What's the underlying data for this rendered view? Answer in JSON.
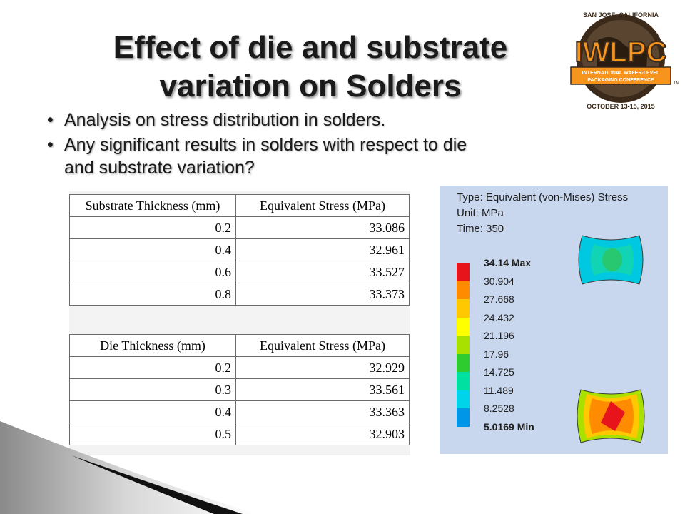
{
  "slide": {
    "title_line1": "Effect of die and substrate",
    "title_line2": "variation on Solders",
    "bullets": [
      "Analysis on stress distribution in solders.",
      "Any significant results in solders with respect to die",
      "and substrate variation?"
    ]
  },
  "logo": {
    "top_text": "SAN JOSE, CALIFORNIA",
    "name": "IWLPC",
    "banner_line1": "INTERNATIONAL WAFER-LEVEL",
    "banner_line2": "PACKAGING CONFERENCE",
    "bottom_text": "OCTOBER 13-15, 2015",
    "tm": "TM",
    "colors": {
      "orange": "#f7941d",
      "dark": "#3b2a1a",
      "banner": "#ffffff"
    }
  },
  "substrate_table": {
    "headers": [
      "Substrate Thickness (mm)",
      "Equivalent Stress (MPa)"
    ],
    "rows": [
      [
        "0.2",
        "33.086"
      ],
      [
        "0.4",
        "32.961"
      ],
      [
        "0.6",
        "33.527"
      ],
      [
        "0.8",
        "33.373"
      ]
    ]
  },
  "die_table": {
    "headers": [
      "Die Thickness (mm)",
      "Equivalent Stress (MPa)"
    ],
    "rows": [
      [
        "0.2",
        "32.929"
      ],
      [
        "0.3",
        "33.561"
      ],
      [
        "0.4",
        "33.363"
      ],
      [
        "0.5",
        "32.903"
      ]
    ]
  },
  "simulation": {
    "type_line": "Type: Equivalent (von-Mises) Stress",
    "unit_line": "Unit: MPa",
    "time_line": "Time: 350",
    "legend_labels": [
      "34.14 Max",
      "30.904",
      "27.668",
      "24.432",
      "21.196",
      "17.96",
      "14.725",
      "11.489",
      "8.2528",
      "5.0169 Min"
    ],
    "legend_colors": [
      "#e8141c",
      "#ff8c00",
      "#ffc800",
      "#ffff00",
      "#a8e000",
      "#2ecc2e",
      "#00e0a0",
      "#00d4e8",
      "#0096e8",
      "#0018d8"
    ]
  }
}
